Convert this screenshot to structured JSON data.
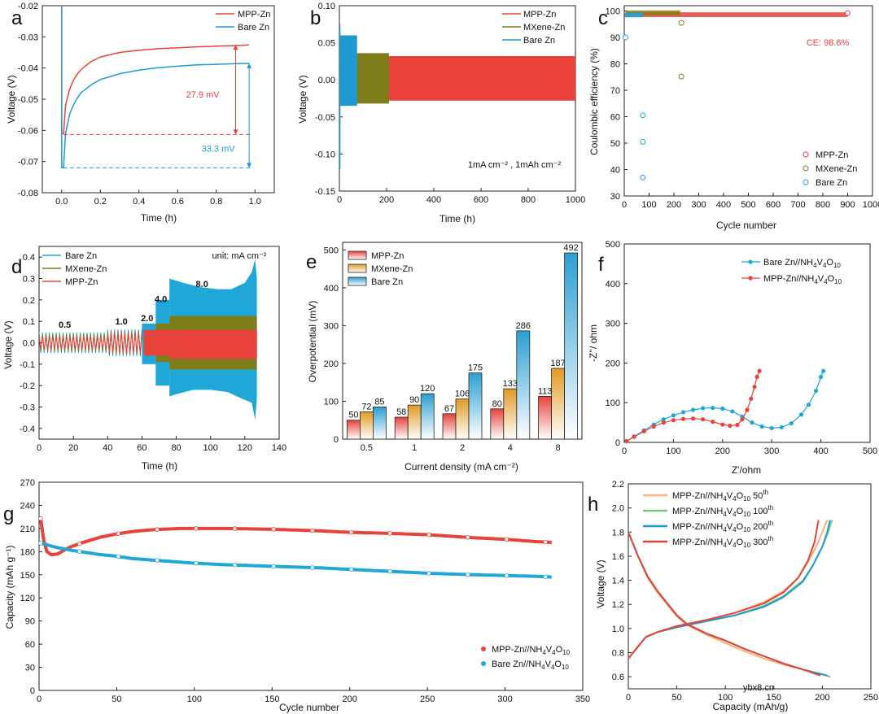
{
  "watermark": "ybx8.cn",
  "chart_data": [
    {
      "panel": "a",
      "type": "line",
      "xlabel": "Time (h)",
      "ylabel": "Voltage (V)",
      "xlim": [
        -0.1,
        1.1
      ],
      "ylim": [
        -0.08,
        -0.02
      ],
      "xticks": [
        0.0,
        0.2,
        0.4,
        0.6,
        0.8,
        1.0
      ],
      "yticks": [
        -0.08,
        -0.07,
        -0.06,
        -0.05,
        -0.04,
        -0.03,
        -0.02
      ],
      "legend": "top-right",
      "series": [
        {
          "name": "MPP-Zn",
          "color": "#e8423b",
          "x": [
            0.01,
            0.02,
            0.04,
            0.06,
            0.08,
            0.1,
            0.15,
            0.2,
            0.3,
            0.4,
            0.5,
            0.6,
            0.7,
            0.8,
            0.9,
            0.97
          ],
          "y": [
            -0.061,
            -0.052,
            -0.047,
            -0.044,
            -0.042,
            -0.0405,
            -0.038,
            -0.0365,
            -0.035,
            -0.0343,
            -0.0338,
            -0.0335,
            -0.0332,
            -0.033,
            -0.0328,
            -0.0326
          ]
        },
        {
          "name": "Bare Zn",
          "color": "#1f9bd1",
          "x": [
            0.01,
            0.02,
            0.04,
            0.06,
            0.08,
            0.1,
            0.15,
            0.2,
            0.3,
            0.4,
            0.5,
            0.6,
            0.7,
            0.8,
            0.9,
            0.97
          ],
          "y": [
            -0.072,
            -0.061,
            -0.055,
            -0.052,
            -0.0497,
            -0.048,
            -0.0455,
            -0.0437,
            -0.0418,
            -0.0407,
            -0.0399,
            -0.0394,
            -0.039,
            -0.0388,
            -0.0386,
            -0.0385
          ]
        }
      ],
      "annotations": [
        {
          "text": "27.9 mV",
          "color": "#e8423b"
        },
        {
          "text": "33.3 mV",
          "color": "#1f9bd1"
        }
      ],
      "reference_lines": [
        {
          "y": -0.0613,
          "color": "#e8423b"
        },
        {
          "y": -0.072,
          "color": "#1f9bd1"
        }
      ]
    },
    {
      "panel": "b",
      "type": "line",
      "xlabel": "Time (h)",
      "ylabel": "Voltage (V)",
      "xlim": [
        0,
        1000
      ],
      "ylim": [
        -0.15,
        0.1
      ],
      "xticks": [
        0,
        200,
        400,
        600,
        800,
        1000
      ],
      "yticks": [
        -0.15,
        -0.1,
        -0.05,
        0.0,
        0.05,
        0.1
      ],
      "legend": "top-right",
      "note": "1mA cm⁻² , 1mAh cm⁻²",
      "series": [
        {
          "name": "MPP-Zn",
          "color": "#e8423b",
          "x_range": [
            0,
            1000
          ],
          "upper": 0.032,
          "lower": -0.028
        },
        {
          "name": "MXene-Zn",
          "color": "#7d7d1a",
          "x_range": [
            0,
            210
          ],
          "upper": 0.036,
          "lower": -0.032
        },
        {
          "name": "Bare Zn",
          "color": "#1f9bd1",
          "x_range": [
            0,
            75
          ],
          "upper": 0.06,
          "lower": -0.035
        }
      ]
    },
    {
      "panel": "c",
      "type": "scatter",
      "xlabel": "Cycle number",
      "ylabel": "Coulombic efficiency (%)",
      "xlim": [
        0,
        1000
      ],
      "ylim": [
        30,
        102
      ],
      "xticks": [
        0,
        100,
        200,
        300,
        400,
        500,
        600,
        700,
        800,
        900,
        1000
      ],
      "yticks": [
        30,
        40,
        50,
        60,
        70,
        80,
        90,
        100
      ],
      "legend": "bottom-right",
      "annotation": "CE: 98.6%",
      "series": [
        {
          "name": "MPP-Zn",
          "color": "#e8423b",
          "band": [
            5,
            900,
            98.6
          ],
          "points": [
            [
              900,
              99.2
            ]
          ]
        },
        {
          "name": "MXene-Zn",
          "color": "#8a7a10",
          "band": [
            5,
            225,
            99.3
          ],
          "points": [
            [
              230,
              95.5
            ],
            [
              230,
              75.2
            ]
          ]
        },
        {
          "name": "Bare Zn",
          "color": "#1fa7d8",
          "band": [
            2,
            75,
            98.5
          ],
          "points": [
            [
              5,
              90.0
            ],
            [
              75,
              60.5
            ],
            [
              75,
              50.5
            ],
            [
              75,
              37.0
            ]
          ]
        }
      ]
    },
    {
      "panel": "d",
      "type": "line",
      "xlabel": "Time (h)",
      "ylabel": "Voltage (V)",
      "xlim": [
        0,
        140
      ],
      "ylim": [
        -0.45,
        0.45
      ],
      "xticks": [
        0,
        20,
        40,
        60,
        80,
        100,
        120,
        140
      ],
      "yticks": [
        -0.4,
        -0.3,
        -0.2,
        -0.1,
        0.0,
        0.1,
        0.2,
        0.3,
        0.4
      ],
      "legend": "top-left",
      "unit_note": "unit: mA cm⁻²",
      "rate_labels": [
        "0.5",
        "1.0",
        "2.0",
        "4.0",
        "8.0"
      ],
      "series": [
        {
          "name": "Bare Zn",
          "color": "#1fa7d8"
        },
        {
          "name": "MXene-Zn",
          "color": "#7d7d1a"
        },
        {
          "name": "MPP-Zn",
          "color": "#e8423b"
        }
      ]
    },
    {
      "panel": "e",
      "type": "bar",
      "xlabel": "Current density (mA cm⁻²)",
      "ylabel": "Overpotential (mV)",
      "ylim": [
        0,
        520
      ],
      "yticks": [
        0,
        100,
        200,
        300,
        400,
        500
      ],
      "categories": [
        "0.5",
        "1",
        "2",
        "4",
        "8"
      ],
      "legend": "top-left",
      "series": [
        {
          "name": "MPP-Zn",
          "color": "#e8423b",
          "values": [
            50,
            58,
            67,
            80,
            113
          ]
        },
        {
          "name": "MXene-Zn",
          "color": "#e09a22",
          "values": [
            72,
            90,
            106,
            133,
            187
          ]
        },
        {
          "name": "Bare Zn",
          "color": "#2a9fd2",
          "values": [
            85,
            120,
            175,
            286,
            492
          ]
        }
      ]
    },
    {
      "panel": "f",
      "type": "scatter",
      "xlabel": "Z'/ohm",
      "ylabel": "-Z''/ ohm",
      "xlim": [
        0,
        500
      ],
      "ylim": [
        0,
        500
      ],
      "xticks": [
        0,
        100,
        200,
        300,
        400,
        500
      ],
      "yticks": [
        0,
        100,
        200,
        300,
        400,
        500
      ],
      "legend": "top-right",
      "series": [
        {
          "name": "Bare Zn//NH4V4O10",
          "name_base": "Bare Zn//NH",
          "color": "#1fa7d8",
          "x": [
            5,
            20,
            40,
            60,
            80,
            100,
            120,
            140,
            160,
            180,
            200,
            220,
            240,
            260,
            280,
            300,
            320,
            340,
            360,
            375,
            390,
            400,
            405
          ],
          "y": [
            3,
            15,
            30,
            45,
            58,
            68,
            76,
            82,
            86,
            87,
            85,
            78,
            65,
            50,
            40,
            36,
            38,
            48,
            70,
            95,
            130,
            165,
            180
          ]
        },
        {
          "name": "MPP-Zn//NH4V4O10",
          "name_base": "MPP-Zn//NH",
          "color": "#e8423b",
          "x": [
            5,
            20,
            40,
            60,
            80,
            100,
            120,
            140,
            160,
            180,
            200,
            215,
            230,
            240,
            250,
            258,
            265,
            270,
            275
          ],
          "y": [
            3,
            14,
            28,
            40,
            50,
            56,
            59,
            60,
            58,
            52,
            45,
            42,
            44,
            58,
            82,
            110,
            140,
            165,
            180
          ]
        }
      ]
    },
    {
      "panel": "g",
      "type": "scatter",
      "xlabel": "Cycle number",
      "ylabel": "Capacity (mAh g⁻¹)",
      "xlim": [
        0,
        350
      ],
      "ylim": [
        0,
        270
      ],
      "xticks": [
        0,
        50,
        100,
        150,
        200,
        250,
        300,
        350
      ],
      "yticks": [
        0,
        30,
        60,
        90,
        120,
        150,
        180,
        210,
        240,
        270
      ],
      "legend": "bottom-right",
      "series": [
        {
          "name": "MPP-Zn//NH4V4O10",
          "name_base": "MPP-Zn//NH",
          "color": "#e8423b",
          "x": [
            1,
            3,
            5,
            8,
            12,
            20,
            30,
            40,
            50,
            60,
            70,
            80,
            90,
            100,
            120,
            150,
            180,
            200,
            220,
            250,
            280,
            300,
            320,
            330
          ],
          "y": [
            223,
            195,
            180,
            176,
            177,
            186,
            193,
            199,
            203,
            206,
            208,
            209,
            210,
            210,
            210,
            209,
            207,
            205,
            204,
            202,
            198,
            196,
            193,
            192
          ]
        },
        {
          "name": "Bare Zn//NH4V4O10",
          "name_base": "Bare Zn//NH",
          "color": "#1fa7d8",
          "x": [
            1,
            5,
            10,
            20,
            30,
            40,
            50,
            60,
            80,
            100,
            120,
            150,
            180,
            200,
            220,
            250,
            280,
            300,
            320,
            330
          ],
          "y": [
            191,
            189,
            186,
            182,
            179,
            176,
            174,
            171,
            168,
            165,
            163,
            161,
            159,
            157,
            155,
            152,
            150,
            149,
            148,
            147
          ]
        }
      ]
    },
    {
      "panel": "h",
      "type": "line",
      "xlabel": "Capacity (mAh/g)",
      "ylabel": "Voltage (V)",
      "xlim": [
        0,
        250
      ],
      "ylim": [
        0.5,
        2.2
      ],
      "xticks": [
        0,
        50,
        100,
        150,
        200,
        250
      ],
      "yticks": [
        0.6,
        0.8,
        1.0,
        1.2,
        1.4,
        1.6,
        1.8,
        2.0,
        2.2
      ],
      "legend": "top-left",
      "series": [
        {
          "name": "MPP-Zn//NH4V4O10 50th",
          "name_base": "MPP-Zn//NH",
          "cycle": "50",
          "color": "#f5b27a",
          "discharge_x": [
            0,
            10,
            20,
            30,
            40,
            50,
            60,
            80,
            100,
            120,
            140,
            160,
            180,
            200,
            208
          ],
          "discharge_y": [
            1.8,
            1.6,
            1.42,
            1.3,
            1.2,
            1.1,
            1.03,
            0.95,
            0.88,
            0.81,
            0.75,
            0.7,
            0.66,
            0.62,
            0.6
          ],
          "charge_x": [
            0,
            10,
            18,
            30,
            50,
            80,
            110,
            140,
            160,
            175,
            185,
            195,
            200,
            205
          ],
          "charge_y": [
            0.75,
            0.85,
            0.93,
            0.97,
            1.02,
            1.07,
            1.13,
            1.22,
            1.31,
            1.42,
            1.55,
            1.7,
            1.8,
            1.9
          ]
        },
        {
          "name": "MPP-Zn//NH4V4O10 100th",
          "name_base": "MPP-Zn//NH",
          "cycle": "100",
          "color": "#7dc77b",
          "discharge_x": [
            0,
            10,
            20,
            30,
            40,
            50,
            60,
            80,
            100,
            120,
            140,
            160,
            180,
            200,
            208
          ],
          "discharge_y": [
            1.8,
            1.6,
            1.43,
            1.31,
            1.21,
            1.11,
            1.04,
            0.96,
            0.9,
            0.83,
            0.77,
            0.71,
            0.66,
            0.62,
            0.6
          ],
          "charge_x": [
            0,
            10,
            18,
            30,
            50,
            80,
            110,
            140,
            160,
            180,
            190,
            200,
            206,
            210
          ],
          "charge_y": [
            0.75,
            0.85,
            0.93,
            0.97,
            1.01,
            1.06,
            1.11,
            1.19,
            1.27,
            1.4,
            1.52,
            1.68,
            1.8,
            1.9
          ]
        },
        {
          "name": "MPP-Zn//NH4V4O10 200th",
          "name_base": "MPP-Zn//NH",
          "cycle": "200",
          "color": "#1f9bd1",
          "discharge_x": [
            0,
            10,
            20,
            30,
            40,
            50,
            60,
            80,
            100,
            120,
            140,
            160,
            180,
            200,
            205
          ],
          "discharge_y": [
            1.8,
            1.6,
            1.43,
            1.31,
            1.21,
            1.11,
            1.04,
            0.96,
            0.9,
            0.83,
            0.77,
            0.71,
            0.66,
            0.62,
            0.61
          ],
          "charge_x": [
            0,
            10,
            18,
            30,
            50,
            80,
            110,
            140,
            160,
            180,
            190,
            200,
            205,
            208
          ],
          "charge_y": [
            0.75,
            0.85,
            0.93,
            0.97,
            1.01,
            1.06,
            1.11,
            1.18,
            1.26,
            1.39,
            1.52,
            1.68,
            1.8,
            1.9
          ]
        },
        {
          "name": "MPP-Zn//NH4V4O10 300th",
          "name_base": "MPP-Zn//NH",
          "cycle": "300",
          "color": "#e8423b",
          "discharge_x": [
            0,
            10,
            20,
            30,
            40,
            50,
            60,
            80,
            100,
            120,
            140,
            160,
            180,
            198
          ],
          "discharge_y": [
            1.8,
            1.6,
            1.43,
            1.31,
            1.21,
            1.11,
            1.04,
            0.96,
            0.9,
            0.83,
            0.77,
            0.71,
            0.66,
            0.61
          ],
          "charge_x": [
            0,
            10,
            18,
            30,
            50,
            80,
            110,
            140,
            160,
            175,
            185,
            192,
            196
          ],
          "charge_y": [
            0.75,
            0.85,
            0.93,
            0.97,
            1.02,
            1.07,
            1.13,
            1.21,
            1.3,
            1.42,
            1.56,
            1.72,
            1.9
          ]
        }
      ]
    }
  ]
}
